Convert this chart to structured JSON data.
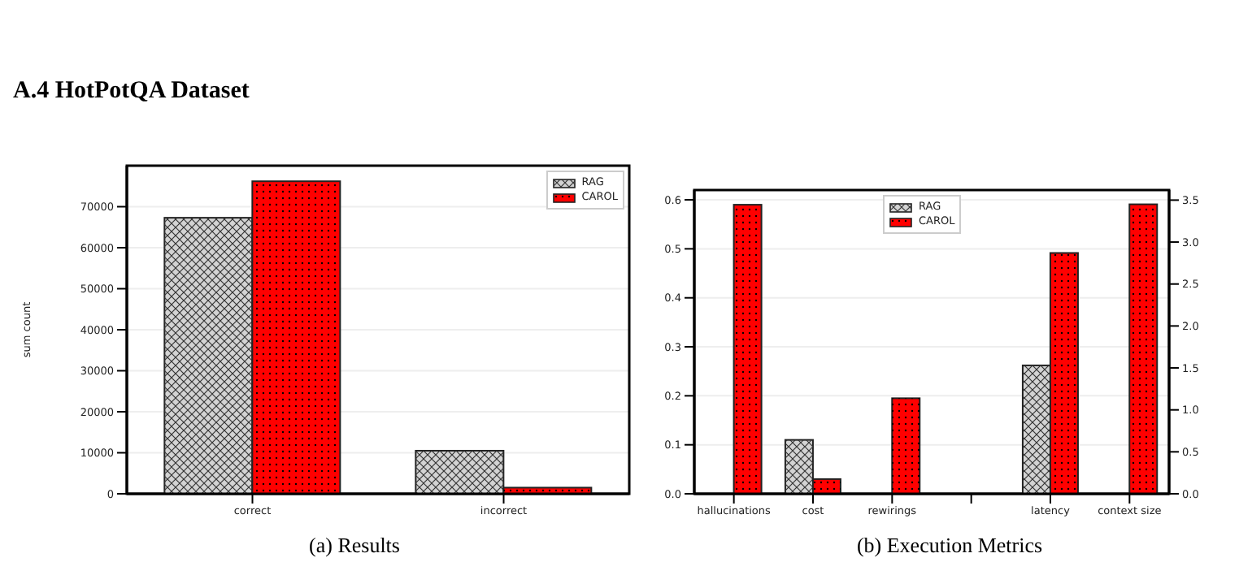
{
  "chart_data": [
    {
      "type": "bar",
      "title": "A.4 HotPotQA Dataset",
      "categories": [
        "correct",
        "incorrect"
      ],
      "ylabel": "sum count",
      "ylim": [
        0,
        80000
      ],
      "yticks": [
        0,
        10000,
        20000,
        30000,
        40000,
        50000,
        60000,
        70000
      ],
      "grid": "y",
      "legend": "top right",
      "annotations": [
        "(a) Results"
      ],
      "series": [
        {
          "name": "RAG",
          "color": "#d3d3d3",
          "values": [
            67300,
            10500
          ]
        },
        {
          "name": "CAROL",
          "color": "#ff0000",
          "values": [
            76200,
            1500
          ]
        }
      ]
    },
    {
      "type": "bar",
      "categories": [
        "hallucinations",
        "cost",
        "rewirings",
        null,
        "latency",
        "context size"
      ],
      "ylim": [
        0,
        0.62
      ],
      "yticks": [
        {
          "value": 0,
          "label": "0.0"
        },
        0.1,
        0.2,
        0.3,
        0.4,
        0.5,
        0.6
      ],
      "y2lim": [
        0,
        3.62
      ],
      "y2ticks": [
        {
          "value": 0,
          "label": "0.0"
        },
        0.5,
        {
          "value": 1,
          "label": "1.0"
        },
        1.5,
        {
          "value": 2,
          "label": "2.0"
        },
        2.5,
        {
          "value": 3,
          "label": "3.0"
        },
        3.5
      ],
      "grid": "y",
      "legend": "top",
      "annotations": [
        "(b) Execution Metrics"
      ],
      "series": [
        {
          "name": "RAG",
          "color": "#d3d3d3",
          "values": [
            null,
            0.11,
            null,
            null,
            null,
            null
          ]
        },
        {
          "name": "CAROL",
          "color": "#ff0000",
          "values": [
            0.59,
            0.03,
            0.195,
            null,
            null,
            null
          ]
        },
        {
          "color": "#d3d3d3",
          "axis": "y2",
          "values": [
            null,
            null,
            null,
            null,
            1.53,
            null
          ]
        },
        {
          "color": "#ff0000",
          "axis": "y2",
          "values": [
            null,
            null,
            null,
            null,
            2.87,
            3.45
          ]
        }
      ]
    }
  ]
}
